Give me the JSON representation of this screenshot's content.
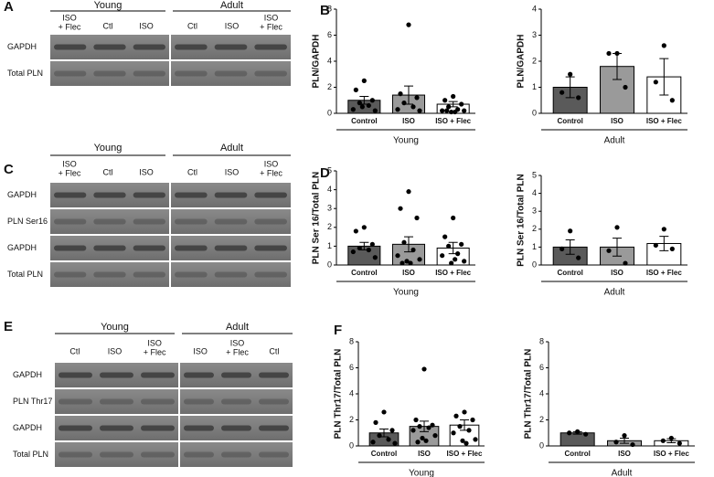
{
  "blots": [
    {
      "letter": "A",
      "groups": [
        {
          "name": "Young",
          "lanes": [
            [
              "ISO",
              "+ Flec"
            ],
            [
              "Ctl"
            ],
            [
              "ISO"
            ]
          ]
        },
        {
          "name": "Adult",
          "lanes": [
            [
              "Ctl"
            ],
            [
              "ISO"
            ],
            [
              "ISO",
              "+ Flec"
            ]
          ]
        }
      ],
      "rows": [
        "GAPDH",
        "Total PLN"
      ]
    },
    {
      "letter": "C",
      "groups": [
        {
          "name": "Young",
          "lanes": [
            [
              "ISO",
              "+ Flec"
            ],
            [
              "Ctl"
            ],
            [
              "ISO"
            ]
          ]
        },
        {
          "name": "Adult",
          "lanes": [
            [
              "Ctl"
            ],
            [
              "ISO"
            ],
            [
              "ISO",
              "+ Flec"
            ]
          ]
        }
      ],
      "rows": [
        "GAPDH",
        "PLN Ser16",
        "GAPDH",
        "Total PLN"
      ]
    },
    {
      "letter": "E",
      "groups": [
        {
          "name": "Young",
          "lanes": [
            [
              "Ctl"
            ],
            [
              "ISO"
            ],
            [
              "ISO",
              "+ Flec"
            ]
          ]
        },
        {
          "name": "Adult",
          "lanes": [
            [
              "ISO"
            ],
            [
              "ISO",
              "+ Flec"
            ],
            [
              "Ctl"
            ]
          ]
        }
      ],
      "rows": [
        "GAPDH",
        "PLN Thr17",
        "GAPDH",
        "Total PLN"
      ]
    }
  ],
  "chart_data": [
    {
      "type": "bar",
      "panel": "B",
      "ylabel": "PLN/GAPDH",
      "xlabel": "Young",
      "categories": [
        "Control",
        "ISO",
        "ISO + Flec"
      ],
      "colors": [
        "#5a5a5a",
        "#9a9a9a",
        "#ffffff"
      ],
      "values": [
        1.0,
        1.4,
        0.7
      ],
      "errors": [
        0.3,
        0.7,
        0.2
      ],
      "points": [
        [
          2.5,
          1.8,
          1.0,
          0.8,
          0.6,
          0.3,
          0.2,
          0.5
        ],
        [
          6.8,
          1.5,
          1.2,
          0.8,
          0.5,
          0.3,
          0.2
        ],
        [
          1.3,
          1.0,
          0.7,
          0.5,
          0.3,
          0.2,
          0.2,
          0.1,
          0.1,
          0.2
        ]
      ],
      "ylim": [
        0,
        8
      ],
      "yticks": [
        0,
        2,
        4,
        6,
        8
      ]
    },
    {
      "type": "bar",
      "ylabel": "PLN/GAPDH",
      "xlabel": "Adult",
      "categories": [
        "Control",
        "ISO",
        "ISO + Flec"
      ],
      "colors": [
        "#5a5a5a",
        "#9a9a9a",
        "#ffffff"
      ],
      "values": [
        1.0,
        1.8,
        1.4
      ],
      "errors": [
        0.4,
        0.5,
        0.7
      ],
      "points": [
        [
          1.5,
          0.8,
          0.6
        ],
        [
          2.3,
          2.3,
          1.0
        ],
        [
          2.6,
          1.2,
          0.5
        ]
      ],
      "ylim": [
        0,
        4
      ],
      "yticks": [
        0,
        1,
        2,
        3,
        4
      ]
    },
    {
      "type": "bar",
      "panel": "D",
      "ylabel": "PLN Ser 16/Total PLN",
      "xlabel": "Young",
      "categories": [
        "Control",
        "ISO",
        "ISO + Flec"
      ],
      "colors": [
        "#5a5a5a",
        "#9a9a9a",
        "#ffffff"
      ],
      "values": [
        1.0,
        1.1,
        0.9
      ],
      "errors": [
        0.2,
        0.4,
        0.3
      ],
      "points": [
        [
          2.0,
          1.8,
          1.1,
          0.9,
          0.8,
          0.7,
          0.4
        ],
        [
          3.9,
          3.0,
          2.5,
          1.2,
          0.8,
          0.5,
          0.3,
          0.2,
          0.1,
          0.1
        ],
        [
          2.5,
          1.5,
          1.1,
          1.0,
          0.6,
          0.5,
          0.2,
          0.1,
          0.3
        ]
      ],
      "ylim": [
        0,
        5
      ],
      "yticks": [
        0,
        1,
        2,
        3,
        4,
        5
      ]
    },
    {
      "type": "bar",
      "ylabel": "PLN Ser 16/Total PLN",
      "xlabel": "Adult",
      "categories": [
        "Control",
        "ISO",
        "ISO + Flec"
      ],
      "colors": [
        "#5a5a5a",
        "#9a9a9a",
        "#ffffff"
      ],
      "values": [
        1.0,
        1.0,
        1.2
      ],
      "errors": [
        0.4,
        0.5,
        0.4
      ],
      "points": [
        [
          1.9,
          0.9,
          0.4
        ],
        [
          2.1,
          0.8,
          0.1
        ],
        [
          2.0,
          1.1,
          0.9
        ]
      ],
      "ylim": [
        0,
        5
      ],
      "yticks": [
        0,
        1,
        2,
        3,
        4,
        5
      ]
    },
    {
      "type": "bar",
      "panel": "F",
      "ylabel": "PLN Thr17/Total  PLN",
      "xlabel": "Young",
      "categories": [
        "Control",
        "ISO",
        "ISO + Flec"
      ],
      "colors": [
        "#5a5a5a",
        "#9a9a9a",
        "#ffffff"
      ],
      "values": [
        1.0,
        1.5,
        1.6
      ],
      "errors": [
        0.3,
        0.4,
        0.4
      ],
      "points": [
        [
          2.6,
          1.8,
          1.2,
          0.8,
          0.5,
          0.3,
          0.2
        ],
        [
          5.9,
          2.0,
          1.6,
          1.5,
          1.4,
          1.2,
          0.8,
          0.6,
          0.4,
          0.3
        ],
        [
          2.6,
          2.3,
          2.0,
          1.5,
          1.2,
          1.0,
          0.5,
          0.4,
          0.2
        ]
      ],
      "ylim": [
        0,
        8
      ],
      "yticks": [
        0,
        2,
        4,
        6,
        8
      ]
    },
    {
      "type": "bar",
      "ylabel": "PLN Thr17/Total  PLN",
      "xlabel": "Adult",
      "categories": [
        "Control",
        "ISO",
        "ISO + Flec"
      ],
      "colors": [
        "#5a5a5a",
        "#9a9a9a",
        "#ffffff"
      ],
      "values": [
        1.0,
        0.4,
        0.4
      ],
      "errors": [
        0.1,
        0.2,
        0.15
      ],
      "points": [
        [
          1.1,
          1.0,
          0.9
        ],
        [
          0.8,
          0.3,
          0.1
        ],
        [
          0.6,
          0.4,
          0.2
        ]
      ],
      "ylim": [
        0,
        8
      ],
      "yticks": [
        0,
        2,
        4,
        6,
        8
      ]
    }
  ]
}
